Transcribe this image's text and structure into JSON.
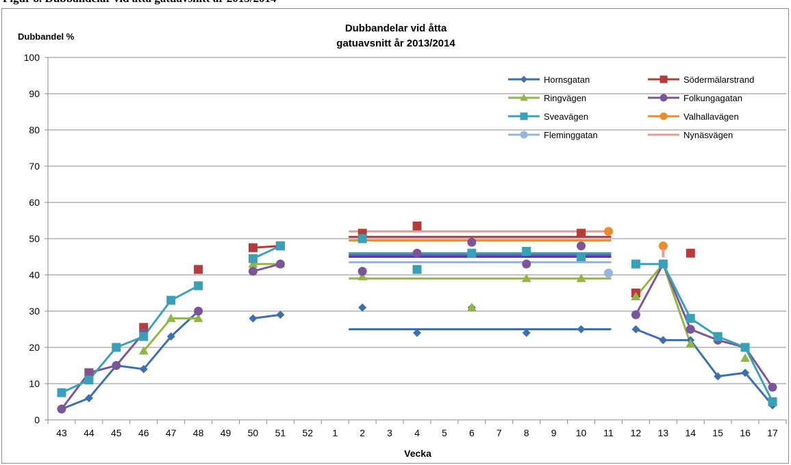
{
  "caption_cutoff": "Figur 8. Dubbandelar vid åtta gatuavsnitt år 2013/2014",
  "chart_data": {
    "type": "line",
    "title_lines": [
      "Dubbandelar vid åtta",
      "gatuavsnitt år 2013/2014"
    ],
    "ylabel": "Dubbandel %",
    "xlabel": "Vecka",
    "ylim": [
      0,
      100
    ],
    "yticks": [
      0,
      10,
      20,
      30,
      40,
      50,
      60,
      70,
      80,
      90,
      100
    ],
    "grid": "horizontal",
    "legend_position": "top-right",
    "categories": [
      "43",
      "44",
      "45",
      "46",
      "47",
      "48",
      "49",
      "50",
      "51",
      "52",
      "1",
      "2",
      "3",
      "4",
      "5",
      "6",
      "7",
      "8",
      "9",
      "10",
      "11",
      "12",
      "13",
      "14",
      "15",
      "16",
      "17"
    ],
    "series": [
      {
        "name": "Hornsgatan",
        "color": "#3d6fb0",
        "marker": "diamond",
        "values": [
          3,
          6,
          15,
          14,
          23,
          30,
          null,
          28,
          29,
          null,
          null,
          31,
          null,
          24,
          null,
          31,
          null,
          24,
          null,
          25,
          null,
          25,
          22,
          22,
          12,
          13,
          4
        ],
        "mean": 25
      },
      {
        "name": "Södermälarstrand",
        "color": "#b63c3a",
        "marker": "square",
        "values": [
          null,
          13,
          null,
          25.5,
          null,
          41.5,
          null,
          47.5,
          48,
          null,
          null,
          51.5,
          null,
          53.5,
          null,
          null,
          null,
          null,
          null,
          51.5,
          null,
          35,
          null,
          46,
          null,
          null,
          null
        ],
        "mean": 50.5
      },
      {
        "name": "Ringvägen",
        "color": "#93b545",
        "marker": "triangle",
        "values": [
          null,
          null,
          null,
          19,
          28,
          28,
          null,
          43,
          43,
          null,
          null,
          39.5,
          null,
          null,
          null,
          31,
          null,
          39,
          null,
          39,
          null,
          34,
          43,
          21,
          null,
          17,
          null
        ],
        "mean": 39
      },
      {
        "name": "Folkungagatan",
        "color": "#7b559a",
        "marker": "circle",
        "values": [
          3,
          13,
          15,
          24,
          null,
          30,
          null,
          41,
          43,
          null,
          null,
          41,
          null,
          46,
          null,
          49,
          null,
          43,
          null,
          48,
          null,
          29,
          43,
          25,
          22,
          20,
          9
        ],
        "mean": 45.5
      },
      {
        "name": "Sveavägen",
        "color": "#3aa0b8",
        "marker": "square",
        "values": [
          7.5,
          11,
          20,
          23,
          33,
          37,
          null,
          44.5,
          48,
          null,
          null,
          50,
          null,
          41.5,
          null,
          46,
          null,
          46.5,
          null,
          45,
          null,
          43,
          43,
          28,
          23,
          20,
          5
        ],
        "mean": 46
      },
      {
        "name": "Valhallavägen",
        "color": "#ec8a2e",
        "marker": "circle",
        "values": [
          null,
          null,
          null,
          null,
          null,
          null,
          null,
          null,
          null,
          null,
          null,
          null,
          null,
          null,
          null,
          null,
          null,
          null,
          null,
          null,
          52,
          null,
          48,
          null,
          null,
          null,
          null
        ],
        "mean": 49.5
      },
      {
        "name": "Fleminggatan",
        "color": "#98b3de",
        "marker": "circle",
        "values": [
          null,
          null,
          null,
          null,
          null,
          null,
          null,
          null,
          null,
          null,
          null,
          null,
          null,
          null,
          null,
          null,
          null,
          null,
          null,
          null,
          40.5,
          null,
          null,
          null,
          null,
          null,
          null
        ],
        "mean": 43.5
      },
      {
        "name": "Nynäsvägen",
        "color": "#e59d99",
        "marker": "dash",
        "values": [
          null,
          null,
          null,
          null,
          null,
          null,
          null,
          null,
          null,
          null,
          null,
          null,
          null,
          null,
          null,
          null,
          null,
          null,
          null,
          null,
          null,
          null,
          46,
          null,
          null,
          null,
          null
        ],
        "mean": 52
      }
    ],
    "mean_span": [
      "2",
      "11"
    ],
    "extra_mean_line": {
      "color": "#4a3fc4",
      "value": 45
    }
  }
}
